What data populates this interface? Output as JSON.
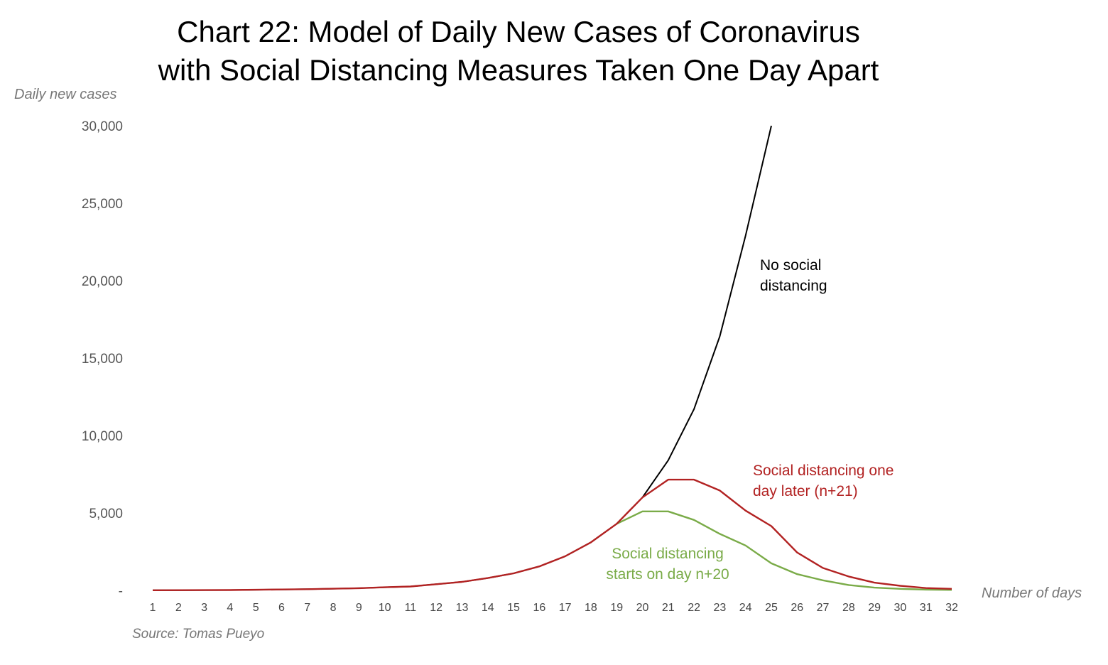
{
  "title_lines": [
    "Chart 22: Model of Daily New Cases of Coronavirus",
    "with Social Distancing Measures Taken One Day Apart"
  ],
  "source": "Source: Tomas Pueyo",
  "chart_data": {
    "type": "line",
    "ylabel": "Daily new cases",
    "xlabel": "Number of days",
    "ylim": [
      0,
      30000
    ],
    "yticks": [
      0,
      5000,
      10000,
      15000,
      20000,
      25000,
      30000
    ],
    "ytick_labels": [
      "-",
      "5,000",
      "10,000",
      "15,000",
      "20,000",
      "25,000",
      "30,000"
    ],
    "x": [
      1,
      2,
      3,
      4,
      5,
      6,
      7,
      8,
      9,
      10,
      11,
      12,
      13,
      14,
      15,
      16,
      17,
      18,
      19,
      20,
      21,
      22,
      23,
      24,
      25,
      26,
      27,
      28,
      29,
      30,
      31,
      32
    ],
    "grid": false,
    "series": [
      {
        "name": "No social distancing",
        "color": "#000000",
        "x": [
          1,
          2,
          3,
          4,
          5,
          6,
          7,
          8,
          9,
          10,
          11,
          12,
          13,
          14,
          15,
          16,
          17,
          18,
          19,
          20,
          21,
          22,
          23,
          24,
          25
        ],
        "values": [
          10,
          15,
          20,
          25,
          40,
          60,
          80,
          110,
          140,
          200,
          250,
          400,
          550,
          800,
          1100,
          1550,
          2200,
          3100,
          4300,
          6000,
          8400,
          11700,
          16400,
          22900,
          30000
        ]
      },
      {
        "name": "Social distancing one day later (n+21)",
        "color": "#b22222",
        "x": [
          1,
          2,
          3,
          4,
          5,
          6,
          7,
          8,
          9,
          10,
          11,
          12,
          13,
          14,
          15,
          16,
          17,
          18,
          19,
          20,
          21,
          22,
          23,
          24,
          25,
          26,
          27,
          28,
          29,
          30,
          31,
          32
        ],
        "values": [
          10,
          15,
          20,
          25,
          40,
          60,
          80,
          110,
          140,
          200,
          250,
          400,
          550,
          800,
          1100,
          1550,
          2200,
          3100,
          4300,
          6000,
          7150,
          7150,
          6450,
          5150,
          4150,
          2450,
          1450,
          900,
          500,
          300,
          150,
          100
        ]
      },
      {
        "name": "Social distancing starts on day n+20",
        "color": "#7aab48",
        "x": [
          19,
          20,
          21,
          22,
          23,
          24,
          25,
          26,
          27,
          28,
          29,
          30,
          31,
          32
        ],
        "values": [
          4300,
          5100,
          5100,
          4550,
          3650,
          2900,
          1750,
          1050,
          650,
          350,
          180,
          100,
          50,
          30
        ]
      }
    ],
    "annotations": [
      {
        "lines": [
          "No social",
          "distancing"
        ],
        "color": "#000000"
      },
      {
        "lines": [
          "Social distancing one",
          "day later (n+21)"
        ],
        "color": "#b22222"
      },
      {
        "lines": [
          "Social distancing",
          "starts on day n+20"
        ],
        "color": "#7aab48"
      }
    ]
  }
}
